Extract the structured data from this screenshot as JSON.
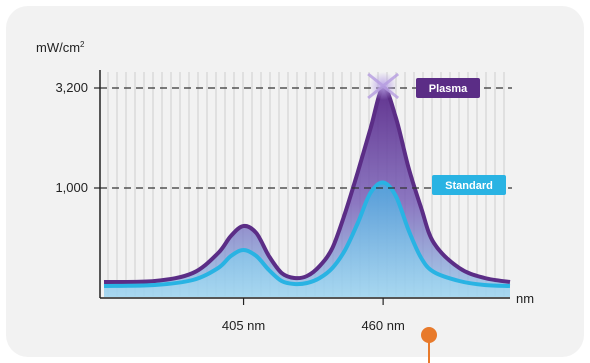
{
  "chart_data": {
    "type": "area",
    "ylabel": "mW/cm",
    "ylabel_superscript": "2",
    "xlabel": "nm",
    "y_ticks": [
      {
        "value": 3200,
        "label": "3,200"
      },
      {
        "value": 1000,
        "label": "1,000"
      }
    ],
    "x_ticks": [
      {
        "value": 405,
        "label": "405 nm"
      },
      {
        "value": 460,
        "label": "460 nm"
      }
    ],
    "xlim": [
      350,
      510
    ],
    "grid": "vertical lines",
    "series": [
      {
        "name": "Plasma",
        "color": "#5b2d86",
        "x": [
          350,
          370,
          385,
          395,
          400,
          405,
          410,
          415,
          420,
          425,
          430,
          435,
          440,
          445,
          450,
          455,
          460,
          465,
          470,
          475,
          480,
          490,
          500,
          510
        ],
        "y": [
          0.06,
          0.07,
          0.15,
          0.35,
          0.52,
          0.62,
          0.55,
          0.32,
          0.15,
          0.1,
          0.12,
          0.22,
          0.4,
          0.75,
          1.35,
          2.3,
          3.2,
          2.55,
          1.45,
          0.8,
          0.45,
          0.2,
          0.1,
          0.06
        ]
      },
      {
        "name": "Standard",
        "color": "#29b3e3",
        "x": [
          350,
          370,
          385,
          395,
          400,
          405,
          410,
          415,
          420,
          425,
          430,
          435,
          440,
          445,
          450,
          455,
          460,
          465,
          470,
          475,
          480,
          490,
          500,
          510
        ],
        "y": [
          0.02,
          0.03,
          0.08,
          0.2,
          0.32,
          0.38,
          0.32,
          0.18,
          0.07,
          0.04,
          0.05,
          0.1,
          0.2,
          0.38,
          0.65,
          0.95,
          1.12,
          0.92,
          0.58,
          0.3,
          0.16,
          0.07,
          0.03,
          0.02
        ]
      }
    ]
  },
  "colors": {
    "card_background": "#f2f2f2",
    "plasma": "#5b2d86",
    "standard": "#29b3e3",
    "indicator": "#e87a2b"
  }
}
